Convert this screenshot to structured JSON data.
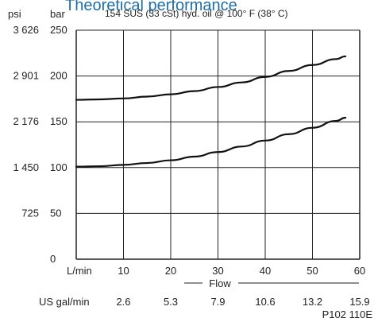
{
  "chart_data": {
    "type": "line",
    "title": "Theoretical performance",
    "subtitle": "154 SUS (33 cSt) hyd. oil @ 100° F (38° C)",
    "figure_code": "P102 110E",
    "xlabel": "Flow",
    "x_unit_primary": "L/min",
    "x_unit_secondary": "US gal/min",
    "y_unit_primary": "bar",
    "y_unit_secondary": "psi",
    "xlim": [
      0,
      60
    ],
    "ylim": [
      0,
      250
    ],
    "x_ticks": [
      0,
      10,
      20,
      30,
      40,
      50,
      60
    ],
    "x_tick_labels": [
      "10",
      "20",
      "30",
      "40",
      "50",
      "60"
    ],
    "x_secondary_tick_labels": [
      "2.6",
      "5.3",
      "7.9",
      "10.6",
      "13.2",
      "15.9"
    ],
    "y_ticks": [
      0,
      50,
      100,
      150,
      200,
      250
    ],
    "y_tick_labels": [
      "0",
      "50",
      "100",
      "150",
      "200",
      "250"
    ],
    "y_secondary_tick_labels": [
      "",
      "725",
      "1 450",
      "2 176",
      "2 901",
      "3 626"
    ],
    "grid": true,
    "series": [
      {
        "x": [
          0,
          5,
          10,
          15,
          20,
          25,
          30,
          35,
          40,
          45,
          50,
          55,
          57
        ],
        "values": [
          174,
          174.5,
          175.5,
          177.5,
          180,
          183.5,
          188,
          193,
          199,
          205.5,
          212,
          218.5,
          221.5
        ]
      },
      {
        "x": [
          0,
          5,
          10,
          15,
          20,
          25,
          30,
          35,
          40,
          45,
          50,
          55,
          57
        ],
        "values": [
          101,
          101.5,
          103,
          105,
          108,
          112,
          117,
          123,
          129.5,
          136.5,
          143.5,
          151,
          154.5
        ]
      }
    ]
  }
}
